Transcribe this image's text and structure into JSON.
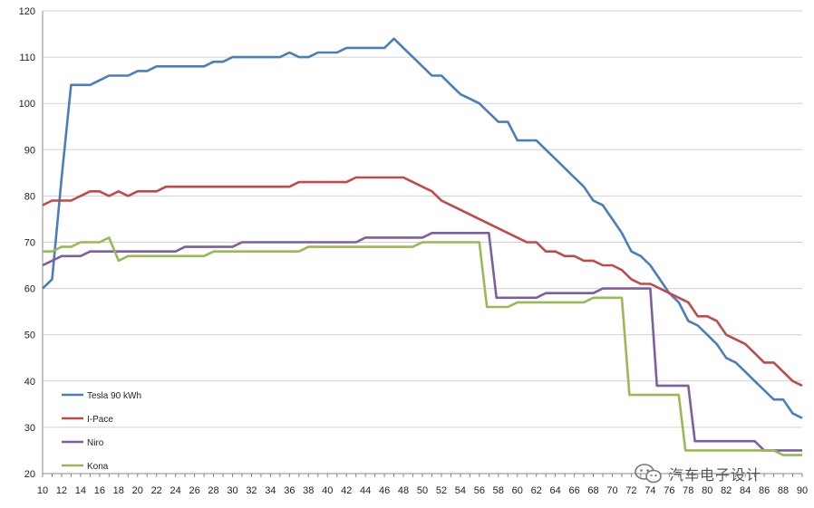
{
  "chart_data": {
    "type": "line",
    "title": "",
    "xlabel": "",
    "ylabel": "",
    "xlim": [
      10,
      90
    ],
    "ylim": [
      20,
      120
    ],
    "yticks": [
      20,
      30,
      40,
      50,
      60,
      70,
      80,
      90,
      100,
      110,
      120
    ],
    "xticks": [
      10,
      12,
      14,
      16,
      18,
      20,
      22,
      24,
      26,
      28,
      30,
      32,
      34,
      36,
      38,
      40,
      42,
      44,
      46,
      48,
      50,
      52,
      54,
      56,
      58,
      60,
      62,
      64,
      66,
      68,
      70,
      72,
      74,
      76,
      78,
      80,
      82,
      84,
      86,
      88,
      90
    ],
    "grid": "horizontal",
    "legend": "left-bottom",
    "colors": {
      "gridline": "#d0d0d0",
      "axis": "#888888"
    },
    "series": [
      {
        "name": "Tesla 90 kWh",
        "color": "#4a7ebb",
        "points": [
          [
            10,
            60
          ],
          [
            11,
            62
          ],
          [
            12,
            84
          ],
          [
            13,
            104
          ],
          [
            14,
            104
          ],
          [
            15,
            104
          ],
          [
            16,
            105
          ],
          [
            17,
            106
          ],
          [
            18,
            106
          ],
          [
            19,
            106
          ],
          [
            20,
            107
          ],
          [
            21,
            107
          ],
          [
            22,
            108
          ],
          [
            23,
            108
          ],
          [
            24,
            108
          ],
          [
            25,
            108
          ],
          [
            26,
            108
          ],
          [
            27,
            108
          ],
          [
            28,
            109
          ],
          [
            29,
            109
          ],
          [
            30,
            110
          ],
          [
            31,
            110
          ],
          [
            32,
            110
          ],
          [
            33,
            110
          ],
          [
            34,
            110
          ],
          [
            35,
            110
          ],
          [
            36,
            111
          ],
          [
            37,
            110
          ],
          [
            38,
            110
          ],
          [
            39,
            111
          ],
          [
            40,
            111
          ],
          [
            41,
            111
          ],
          [
            42,
            112
          ],
          [
            43,
            112
          ],
          [
            44,
            112
          ],
          [
            45,
            112
          ],
          [
            46,
            112
          ],
          [
            47,
            114
          ],
          [
            48,
            112
          ],
          [
            49,
            110
          ],
          [
            50,
            108
          ],
          [
            51,
            106
          ],
          [
            52,
            106
          ],
          [
            53,
            104
          ],
          [
            54,
            102
          ],
          [
            55,
            101
          ],
          [
            56,
            100
          ],
          [
            57,
            98
          ],
          [
            58,
            96
          ],
          [
            59,
            96
          ],
          [
            60,
            92
          ],
          [
            61,
            92
          ],
          [
            62,
            92
          ],
          [
            63,
            90
          ],
          [
            64,
            88
          ],
          [
            65,
            86
          ],
          [
            66,
            84
          ],
          [
            67,
            82
          ],
          [
            68,
            79
          ],
          [
            69,
            78
          ],
          [
            70,
            75
          ],
          [
            71,
            72
          ],
          [
            72,
            68
          ],
          [
            73,
            67
          ],
          [
            74,
            65
          ],
          [
            75,
            62
          ],
          [
            76,
            59
          ],
          [
            77,
            57
          ],
          [
            78,
            53
          ],
          [
            79,
            52
          ],
          [
            80,
            50
          ],
          [
            81,
            48
          ],
          [
            82,
            45
          ],
          [
            83,
            44
          ],
          [
            84,
            42
          ],
          [
            85,
            40
          ],
          [
            86,
            38
          ],
          [
            87,
            36
          ],
          [
            88,
            36
          ],
          [
            89,
            33
          ],
          [
            90,
            32
          ]
        ]
      },
      {
        "name": "I-Pace",
        "color": "#be4b48",
        "points": [
          [
            10,
            78
          ],
          [
            11,
            79
          ],
          [
            12,
            79
          ],
          [
            13,
            79
          ],
          [
            14,
            80
          ],
          [
            15,
            81
          ],
          [
            16,
            81
          ],
          [
            17,
            80
          ],
          [
            18,
            81
          ],
          [
            19,
            80
          ],
          [
            20,
            81
          ],
          [
            21,
            81
          ],
          [
            22,
            81
          ],
          [
            23,
            82
          ],
          [
            24,
            82
          ],
          [
            25,
            82
          ],
          [
            26,
            82
          ],
          [
            27,
            82
          ],
          [
            28,
            82
          ],
          [
            29,
            82
          ],
          [
            30,
            82
          ],
          [
            31,
            82
          ],
          [
            32,
            82
          ],
          [
            33,
            82
          ],
          [
            34,
            82
          ],
          [
            35,
            82
          ],
          [
            36,
            82
          ],
          [
            37,
            83
          ],
          [
            38,
            83
          ],
          [
            39,
            83
          ],
          [
            40,
            83
          ],
          [
            41,
            83
          ],
          [
            42,
            83
          ],
          [
            43,
            84
          ],
          [
            44,
            84
          ],
          [
            45,
            84
          ],
          [
            46,
            84
          ],
          [
            47,
            84
          ],
          [
            48,
            84
          ],
          [
            49,
            83
          ],
          [
            50,
            82
          ],
          [
            51,
            81
          ],
          [
            52,
            79
          ],
          [
            53,
            78
          ],
          [
            54,
            77
          ],
          [
            55,
            76
          ],
          [
            56,
            75
          ],
          [
            57,
            74
          ],
          [
            58,
            73
          ],
          [
            59,
            72
          ],
          [
            60,
            71
          ],
          [
            61,
            70
          ],
          [
            62,
            70
          ],
          [
            63,
            68
          ],
          [
            64,
            68
          ],
          [
            65,
            67
          ],
          [
            66,
            67
          ],
          [
            67,
            66
          ],
          [
            68,
            66
          ],
          [
            69,
            65
          ],
          [
            70,
            65
          ],
          [
            71,
            64
          ],
          [
            72,
            62
          ],
          [
            73,
            61
          ],
          [
            74,
            61
          ],
          [
            75,
            60
          ],
          [
            76,
            59
          ],
          [
            77,
            58
          ],
          [
            78,
            57
          ],
          [
            79,
            54
          ],
          [
            80,
            54
          ],
          [
            81,
            53
          ],
          [
            82,
            50
          ],
          [
            83,
            49
          ],
          [
            84,
            48
          ],
          [
            85,
            46
          ],
          [
            86,
            44
          ],
          [
            87,
            44
          ],
          [
            88,
            42
          ],
          [
            89,
            40
          ],
          [
            90,
            39
          ]
        ]
      },
      {
        "name": "Niro",
        "color": "#7d5fa0",
        "points": [
          [
            10,
            65
          ],
          [
            11,
            66
          ],
          [
            12,
            67
          ],
          [
            13,
            67
          ],
          [
            14,
            67
          ],
          [
            15,
            68
          ],
          [
            16,
            68
          ],
          [
            17,
            68
          ],
          [
            18,
            68
          ],
          [
            19,
            68
          ],
          [
            20,
            68
          ],
          [
            21,
            68
          ],
          [
            22,
            68
          ],
          [
            23,
            68
          ],
          [
            24,
            68
          ],
          [
            25,
            69
          ],
          [
            26,
            69
          ],
          [
            27,
            69
          ],
          [
            28,
            69
          ],
          [
            29,
            69
          ],
          [
            30,
            69
          ],
          [
            31,
            70
          ],
          [
            32,
            70
          ],
          [
            33,
            70
          ],
          [
            34,
            70
          ],
          [
            35,
            70
          ],
          [
            36,
            70
          ],
          [
            37,
            70
          ],
          [
            38,
            70
          ],
          [
            39,
            70
          ],
          [
            40,
            70
          ],
          [
            41,
            70
          ],
          [
            42,
            70
          ],
          [
            43,
            70
          ],
          [
            44,
            71
          ],
          [
            45,
            71
          ],
          [
            46,
            71
          ],
          [
            47,
            71
          ],
          [
            48,
            71
          ],
          [
            49,
            71
          ],
          [
            50,
            71
          ],
          [
            51,
            72
          ],
          [
            52,
            72
          ],
          [
            53,
            72
          ],
          [
            54,
            72
          ],
          [
            55,
            72
          ],
          [
            56,
            72
          ],
          [
            57,
            72
          ],
          [
            57.8,
            58
          ],
          [
            58,
            58
          ],
          [
            59,
            58
          ],
          [
            60,
            58
          ],
          [
            61,
            58
          ],
          [
            62,
            58
          ],
          [
            63,
            59
          ],
          [
            64,
            59
          ],
          [
            65,
            59
          ],
          [
            66,
            59
          ],
          [
            67,
            59
          ],
          [
            68,
            59
          ],
          [
            69,
            60
          ],
          [
            70,
            60
          ],
          [
            71,
            60
          ],
          [
            72,
            60
          ],
          [
            73,
            60
          ],
          [
            74,
            60
          ],
          [
            74.7,
            39
          ],
          [
            75,
            39
          ],
          [
            76,
            39
          ],
          [
            77,
            39
          ],
          [
            78,
            39
          ],
          [
            78.7,
            27
          ],
          [
            79,
            27
          ],
          [
            80,
            27
          ],
          [
            81,
            27
          ],
          [
            82,
            27
          ],
          [
            83,
            27
          ],
          [
            84,
            27
          ],
          [
            85,
            27
          ],
          [
            86,
            25
          ],
          [
            87,
            25
          ],
          [
            88,
            25
          ],
          [
            89,
            25
          ],
          [
            90,
            25
          ]
        ]
      },
      {
        "name": "Kona",
        "color": "#98b954",
        "points": [
          [
            10,
            68
          ],
          [
            11,
            68
          ],
          [
            12,
            69
          ],
          [
            13,
            69
          ],
          [
            14,
            70
          ],
          [
            15,
            70
          ],
          [
            16,
            70
          ],
          [
            17,
            71
          ],
          [
            18,
            66
          ],
          [
            19,
            67
          ],
          [
            20,
            67
          ],
          [
            21,
            67
          ],
          [
            22,
            67
          ],
          [
            23,
            67
          ],
          [
            24,
            67
          ],
          [
            25,
            67
          ],
          [
            26,
            67
          ],
          [
            27,
            67
          ],
          [
            28,
            68
          ],
          [
            29,
            68
          ],
          [
            30,
            68
          ],
          [
            31,
            68
          ],
          [
            32,
            68
          ],
          [
            33,
            68
          ],
          [
            34,
            68
          ],
          [
            35,
            68
          ],
          [
            36,
            68
          ],
          [
            37,
            68
          ],
          [
            38,
            69
          ],
          [
            39,
            69
          ],
          [
            40,
            69
          ],
          [
            41,
            69
          ],
          [
            42,
            69
          ],
          [
            43,
            69
          ],
          [
            44,
            69
          ],
          [
            45,
            69
          ],
          [
            46,
            69
          ],
          [
            47,
            69
          ],
          [
            48,
            69
          ],
          [
            49,
            69
          ],
          [
            50,
            70
          ],
          [
            51,
            70
          ],
          [
            52,
            70
          ],
          [
            53,
            70
          ],
          [
            54,
            70
          ],
          [
            55,
            70
          ],
          [
            56,
            70
          ],
          [
            56.8,
            56
          ],
          [
            57,
            56
          ],
          [
            58,
            56
          ],
          [
            59,
            56
          ],
          [
            60,
            57
          ],
          [
            61,
            57
          ],
          [
            62,
            57
          ],
          [
            63,
            57
          ],
          [
            64,
            57
          ],
          [
            65,
            57
          ],
          [
            66,
            57
          ],
          [
            67,
            57
          ],
          [
            68,
            58
          ],
          [
            69,
            58
          ],
          [
            70,
            58
          ],
          [
            71,
            58
          ],
          [
            71.8,
            37
          ],
          [
            72,
            37
          ],
          [
            73,
            37
          ],
          [
            74,
            37
          ],
          [
            75,
            37
          ],
          [
            76,
            37
          ],
          [
            77,
            37
          ],
          [
            77.7,
            25
          ],
          [
            78,
            25
          ],
          [
            79,
            25
          ],
          [
            80,
            25
          ],
          [
            81,
            25
          ],
          [
            82,
            25
          ],
          [
            83,
            25
          ],
          [
            84,
            25
          ],
          [
            85,
            25
          ],
          [
            86,
            25
          ],
          [
            87,
            25
          ],
          [
            88,
            24
          ],
          [
            89,
            24
          ],
          [
            90,
            24
          ]
        ]
      }
    ]
  },
  "watermark": {
    "icon": "wechat-icon",
    "text": "汽车电子设计"
  }
}
